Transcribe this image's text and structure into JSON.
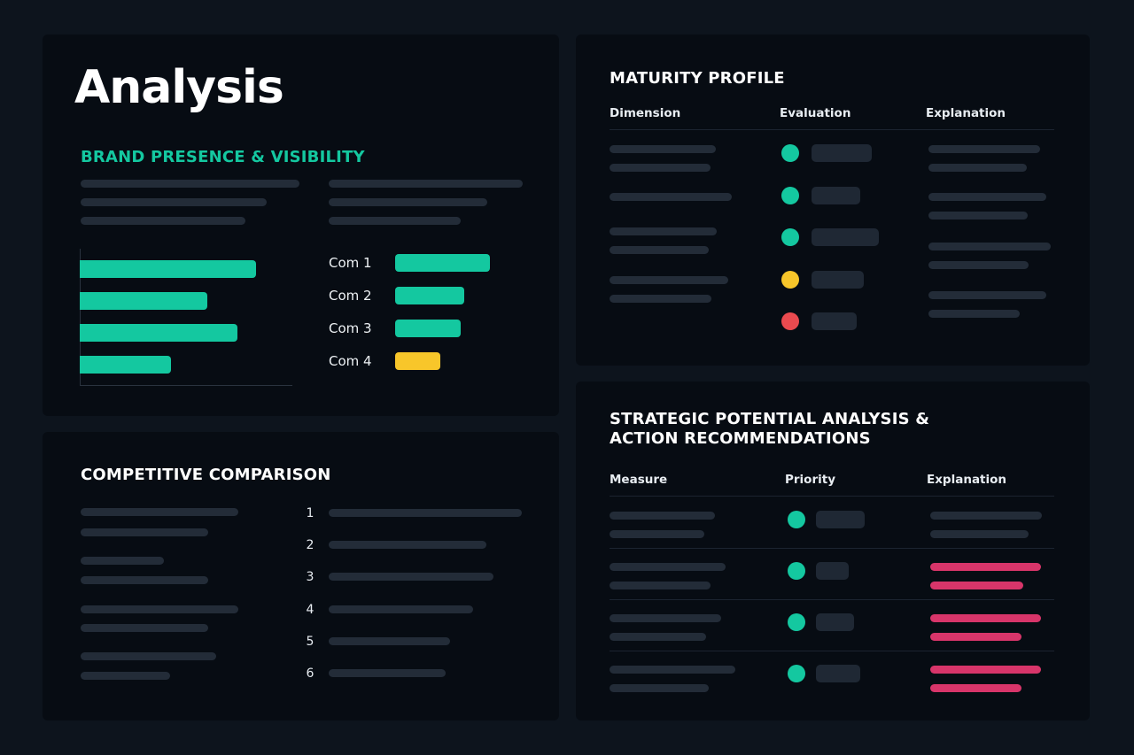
{
  "analysis": {
    "title": "Analysis",
    "brand_section": {
      "title": "BRAND PRESENCE & VISIBILITY",
      "chart_data": {
        "type": "bar",
        "orientation": "horizontal",
        "categories": [
          "Com 1",
          "Com 2",
          "Com 3",
          "Com 4"
        ],
        "values": [
          0.83,
          0.6,
          0.74,
          0.43
        ],
        "value_scale": "fraction of axis width"
      },
      "legend": [
        {
          "label": "Com 1",
          "color": "#14c8a0",
          "level": 1.0
        },
        {
          "label": "Com 2",
          "color": "#14c8a0",
          "level": 0.73
        },
        {
          "label": "Com 3",
          "color": "#14c8a0",
          "level": 0.69
        },
        {
          "label": "Com 4",
          "color": "#f8c62a",
          "level": 0.48
        }
      ]
    }
  },
  "competitive": {
    "title": "COMPETITIVE COMPARISON",
    "ranks": [
      "1",
      "2",
      "3",
      "4",
      "5",
      "6"
    ]
  },
  "maturity": {
    "title": "MATURITY PROFILE",
    "columns": [
      "Dimension",
      "Evaluation",
      "Explanation"
    ],
    "rows": [
      {
        "status_color": "#14c8a0"
      },
      {
        "status_color": "#14c8a0"
      },
      {
        "status_color": "#14c8a0"
      },
      {
        "status_color": "#f8c62a"
      },
      {
        "status_color": "#ea4a4f"
      }
    ]
  },
  "strategic": {
    "title_line1": "STRATEGIC POTENTIAL ANALYSIS &",
    "title_line2": "ACTION RECOMMENDATIONS",
    "columns": [
      "Measure",
      "Priority",
      "Explanation"
    ],
    "rows": [
      {
        "priority_color": "#14c8a0",
        "explanation_highlight": false
      },
      {
        "priority_color": "#14c8a0",
        "explanation_highlight": true
      },
      {
        "priority_color": "#14c8a0",
        "explanation_highlight": true
      },
      {
        "priority_color": "#14c8a0",
        "explanation_highlight": true
      }
    ]
  },
  "colors": {
    "background": "#0d141d",
    "card": "#070c13",
    "accent": "#14c8a0",
    "warning": "#f8c62a",
    "danger": "#ea4a4f",
    "highlight": "#d8356a",
    "skeleton": "#232c38"
  }
}
